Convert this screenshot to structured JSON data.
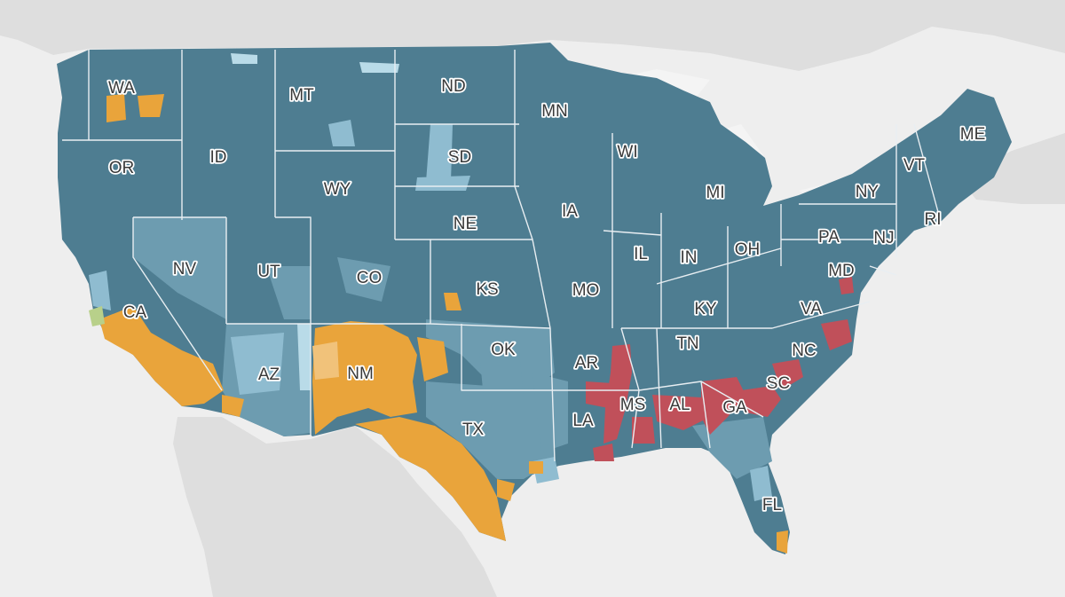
{
  "map": {
    "colors": {
      "background": "#eeeeee",
      "land_outside": "#dedede",
      "base": "#4e7d91",
      "base_light": "#6d9cb0",
      "lighter": "#8fbcd0",
      "lightest": "#b9dbe8",
      "orange": "#e9a43b",
      "orange_light": "#f1c27a",
      "red": "#c0505a",
      "green": "#b8d08a"
    },
    "color_categories": [
      "base",
      "base_light",
      "lighter",
      "lightest",
      "orange",
      "orange_light",
      "red",
      "green"
    ],
    "states": [
      {
        "abbr": "WA"
      },
      {
        "abbr": "OR"
      },
      {
        "abbr": "CA"
      },
      {
        "abbr": "NV"
      },
      {
        "abbr": "ID"
      },
      {
        "abbr": "MT"
      },
      {
        "abbr": "WY"
      },
      {
        "abbr": "UT"
      },
      {
        "abbr": "AZ"
      },
      {
        "abbr": "CO"
      },
      {
        "abbr": "NM"
      },
      {
        "abbr": "ND"
      },
      {
        "abbr": "SD"
      },
      {
        "abbr": "NE"
      },
      {
        "abbr": "KS"
      },
      {
        "abbr": "OK"
      },
      {
        "abbr": "TX"
      },
      {
        "abbr": "MN"
      },
      {
        "abbr": "IA"
      },
      {
        "abbr": "MO"
      },
      {
        "abbr": "AR"
      },
      {
        "abbr": "LA"
      },
      {
        "abbr": "WI"
      },
      {
        "abbr": "IL"
      },
      {
        "abbr": "MI"
      },
      {
        "abbr": "IN"
      },
      {
        "abbr": "OH"
      },
      {
        "abbr": "KY"
      },
      {
        "abbr": "TN"
      },
      {
        "abbr": "MS"
      },
      {
        "abbr": "AL"
      },
      {
        "abbr": "GA"
      },
      {
        "abbr": "FL"
      },
      {
        "abbr": "SC"
      },
      {
        "abbr": "NC"
      },
      {
        "abbr": "VA"
      },
      {
        "abbr": "MD"
      },
      {
        "abbr": "PA"
      },
      {
        "abbr": "NY"
      },
      {
        "abbr": "NJ"
      },
      {
        "abbr": "VT"
      },
      {
        "abbr": "RI"
      },
      {
        "abbr": "ME"
      }
    ]
  }
}
